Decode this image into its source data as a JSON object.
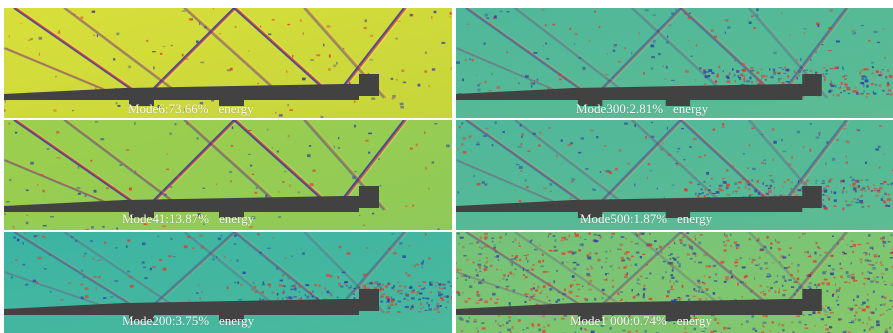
{
  "panels": [
    {
      "id": "p0",
      "mode_label": "Mode6:73.66%",
      "energy_word": "energy",
      "bg": "#d8df3a",
      "bg2": "#c6d53b"
    },
    {
      "id": "p1",
      "mode_label": "Mode300:2.81%",
      "energy_word": "energy",
      "bg": "#4fb79a",
      "bg2": "#5cbc93"
    },
    {
      "id": "p2",
      "mode_label": "Mode41:13.87%",
      "energy_word": "energy",
      "bg": "#9ccf4c",
      "bg2": "#8fc959"
    },
    {
      "id": "p3",
      "mode_label": "Mode500:1.87%",
      "energy_word": "energy",
      "bg": "#4fb79a",
      "bg2": "#5cbc93"
    },
    {
      "id": "p4",
      "mode_label": "Mode200:3.75%",
      "energy_word": "energy",
      "bg": "#3cb4a3",
      "bg2": "#4bb99c"
    },
    {
      "id": "p5",
      "mode_label": "Mode1 000:0.74%",
      "energy_word": "energy",
      "bg": "#73c27b",
      "bg2": "#86c86a"
    }
  ],
  "colors": {
    "body": "#424242",
    "pos": "#e8352a",
    "neg": "#2a3aa8",
    "divider": "#ffffff"
  }
}
